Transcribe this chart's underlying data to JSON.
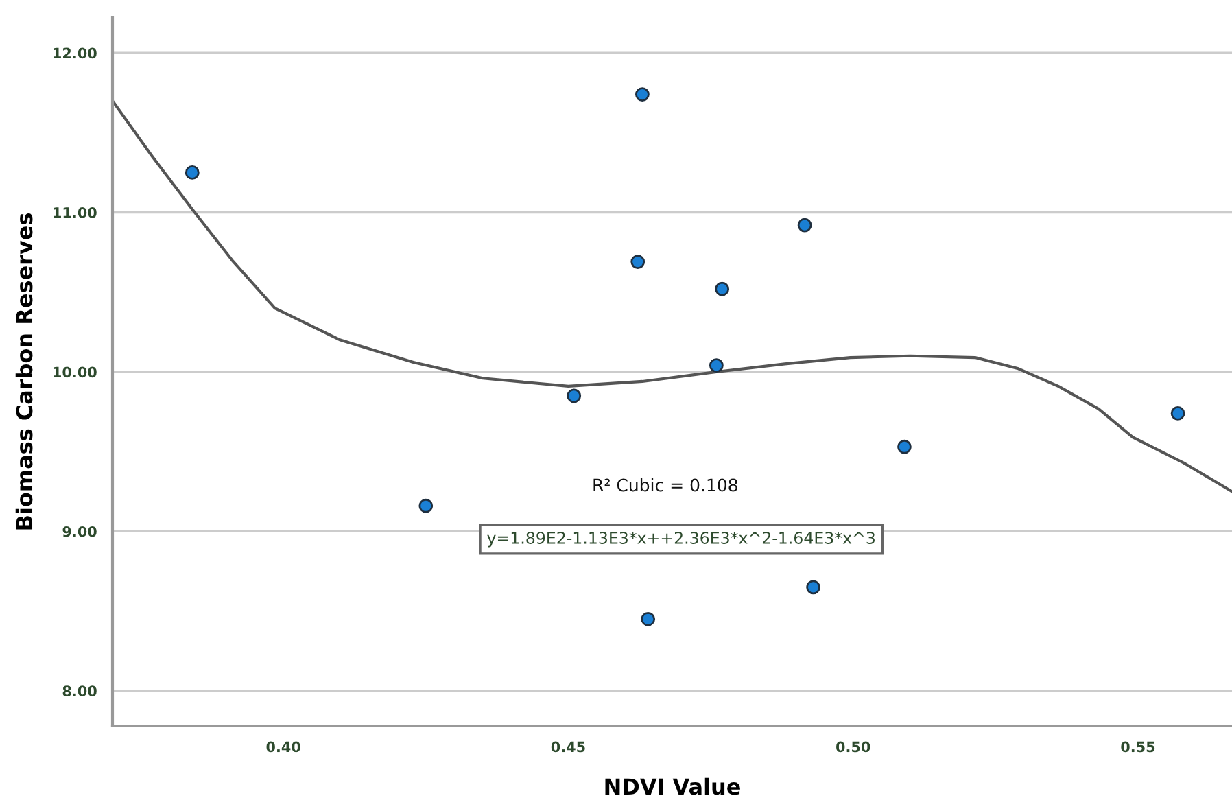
{
  "chart_data": {
    "type": "scatter",
    "xlabel": "NDVI Value",
    "ylabel": "Biomass Carbon Reserves",
    "series": [
      {
        "marker": "circle",
        "color": "#1a7fd4",
        "x": [
          0.384,
          0.425,
          0.451,
          0.4622,
          0.463,
          0.464,
          0.476,
          0.477,
          0.4915,
          0.493,
          0.509,
          0.557
        ],
        "values": [
          11.25,
          9.16,
          9.85,
          10.69,
          11.74,
          8.45,
          10.04,
          10.52,
          10.92,
          8.65,
          9.53,
          9.74
        ]
      },
      {
        "type": "line",
        "color": "#555555",
        "x": [
          0.37,
          0.377,
          0.384,
          0.391,
          0.3985,
          0.41,
          0.4228,
          0.435,
          0.45,
          0.463,
          0.476,
          0.488,
          0.4995,
          0.51,
          0.5214,
          0.529,
          0.536,
          0.543,
          0.5491,
          0.558,
          0.5665
        ],
        "values": [
          11.7,
          11.35,
          11.02,
          10.7,
          10.4,
          10.2,
          10.06,
          9.96,
          9.91,
          9.94,
          10.0,
          10.05,
          10.09,
          10.1,
          10.09,
          10.02,
          9.91,
          9.77,
          9.59,
          9.43,
          9.25
        ]
      }
    ],
    "xlim": [
      0.37,
      0.5665
    ],
    "ylim": [
      7.78,
      12.22
    ],
    "xticks": [
      {
        "value": 0.4,
        "label": "0.40"
      },
      {
        "value": 0.45,
        "label": "0.45"
      },
      {
        "value": 0.5,
        "label": "0.50"
      },
      {
        "value": 0.55,
        "label": "0.55"
      }
    ],
    "yticks": [
      {
        "value": 8,
        "label": "8.00"
      },
      {
        "value": 9,
        "label": "9.00"
      },
      {
        "value": 10,
        "label": "10.00"
      },
      {
        "value": 11,
        "label": "11.00"
      },
      {
        "value": 12,
        "label": "12.00"
      }
    ],
    "grid": "y",
    "annotations": [
      "R² Cubic = 0.108",
      "y=1.89E2-1.13E3*x++2.36E3*x^2-1.64E3*x^3"
    ]
  }
}
